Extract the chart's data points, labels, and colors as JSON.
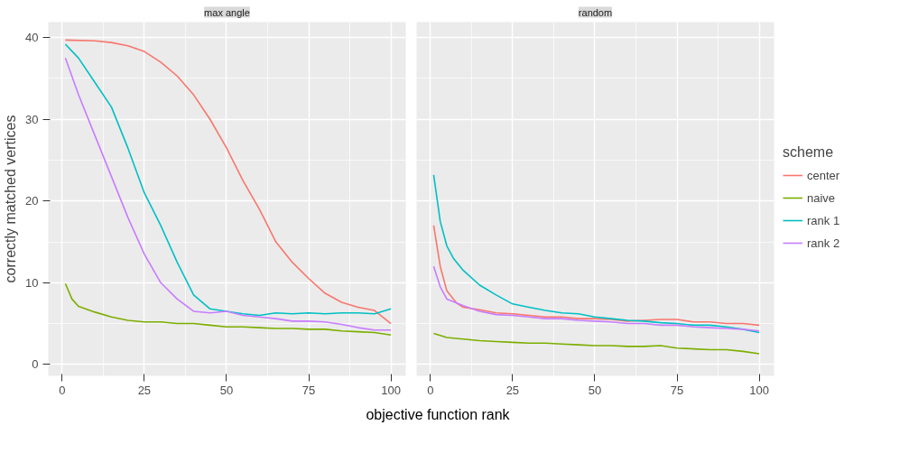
{
  "chart_data": [
    {
      "type": "line",
      "title": "max angle",
      "ylabel": "correctly matched vertices",
      "xlabel": "objective function rank",
      "xlim": [
        -4.2,
        104.5
      ],
      "ylim": [
        -1.4,
        41.9
      ],
      "xticks": [
        0,
        25,
        50,
        75,
        100
      ],
      "yticks": [
        0,
        10,
        20,
        30,
        40
      ],
      "grid": true,
      "series": [
        {
          "color": "#f8766d",
          "x": [
            1,
            10,
            15,
            20,
            25,
            30,
            35,
            40,
            45,
            50,
            55,
            60,
            65,
            70,
            75,
            80,
            85,
            90,
            95,
            100
          ],
          "values": [
            39.7,
            39.6,
            39.4,
            39,
            38.3,
            37,
            35.3,
            33,
            30,
            26.5,
            22.5,
            19,
            15,
            12.5,
            10.5,
            8.7,
            7.6,
            7,
            6.6,
            5
          ]
        },
        {
          "color": "#7cae00",
          "x": [
            1,
            3,
            5,
            10,
            15,
            20,
            25,
            30,
            35,
            40,
            45,
            50,
            55,
            60,
            65,
            70,
            75,
            80,
            85,
            90,
            95,
            100
          ],
          "values": [
            9.9,
            8,
            7.1,
            6.4,
            5.8,
            5.4,
            5.2,
            5.2,
            5,
            5,
            4.8,
            4.6,
            4.6,
            4.5,
            4.4,
            4.4,
            4.3,
            4.3,
            4.1,
            4,
            3.9,
            3.6
          ]
        },
        {
          "color": "#00bfc4",
          "x": [
            1,
            5,
            10,
            15,
            20,
            25,
            30,
            35,
            40,
            45,
            50,
            55,
            60,
            65,
            70,
            75,
            80,
            85,
            90,
            95,
            100
          ],
          "values": [
            39.2,
            37.5,
            34.5,
            31.5,
            26.5,
            21,
            17,
            12.5,
            8.5,
            6.8,
            6.5,
            6.2,
            6,
            6.3,
            6.2,
            6.3,
            6.2,
            6.3,
            6.3,
            6.2,
            6.8
          ]
        },
        {
          "color": "#c77cff",
          "x": [
            1,
            5,
            10,
            15,
            20,
            25,
            30,
            35,
            40,
            45,
            50,
            55,
            60,
            65,
            70,
            75,
            80,
            85,
            90,
            95,
            100
          ],
          "values": [
            37.5,
            33,
            28,
            23,
            18,
            13.5,
            10,
            8,
            6.5,
            6.3,
            6.5,
            6,
            5.8,
            5.6,
            5.3,
            5.3,
            5.2,
            4.9,
            4.5,
            4.2,
            4.2
          ]
        }
      ]
    },
    {
      "type": "line",
      "title": "random",
      "xlim": [
        -4.2,
        104.5
      ],
      "ylim": [
        -1.4,
        41.9
      ],
      "xticks": [
        0,
        25,
        50,
        75,
        100
      ],
      "yticks": [
        0,
        10,
        20,
        30,
        40
      ],
      "tick_labels": "x",
      "grid": true,
      "legend": "right",
      "legend_title": "scheme",
      "series": [
        {
          "name": "center",
          "color": "#f8766d",
          "x": [
            1,
            3,
            5,
            8,
            10,
            15,
            20,
            25,
            30,
            35,
            40,
            45,
            50,
            55,
            60,
            65,
            70,
            75,
            80,
            85,
            90,
            95,
            100
          ],
          "values": [
            17,
            12,
            9,
            7.5,
            7,
            6.7,
            6.3,
            6.2,
            6,
            5.8,
            5.8,
            5.6,
            5.6,
            5.5,
            5.3,
            5.4,
            5.5,
            5.5,
            5.2,
            5.2,
            5,
            5,
            4.8
          ]
        },
        {
          "name": "naive",
          "color": "#7cae00",
          "x": [
            1,
            5,
            10,
            15,
            20,
            25,
            30,
            35,
            40,
            45,
            50,
            55,
            60,
            65,
            70,
            75,
            80,
            85,
            90,
            95,
            100
          ],
          "values": [
            3.8,
            3.3,
            3.1,
            2.9,
            2.8,
            2.7,
            2.6,
            2.6,
            2.5,
            2.4,
            2.3,
            2.3,
            2.2,
            2.2,
            2.3,
            2,
            1.9,
            1.8,
            1.8,
            1.6,
            1.3
          ]
        },
        {
          "name": "rank 1",
          "color": "#00bfc4",
          "x": [
            1,
            3,
            5,
            7,
            10,
            15,
            20,
            25,
            30,
            35,
            40,
            45,
            50,
            55,
            60,
            65,
            70,
            75,
            80,
            85,
            90,
            95,
            100
          ],
          "values": [
            23.2,
            17.5,
            14.5,
            13,
            11.5,
            9.7,
            8.5,
            7.4,
            7,
            6.6,
            6.3,
            6.2,
            5.8,
            5.6,
            5.4,
            5.3,
            5.1,
            5,
            4.8,
            4.8,
            4.6,
            4.3,
            3.9
          ]
        },
        {
          "name": "rank 2",
          "color": "#c77cff",
          "x": [
            1,
            3,
            5,
            10,
            15,
            20,
            25,
            30,
            35,
            40,
            45,
            50,
            55,
            60,
            65,
            70,
            75,
            80,
            85,
            90,
            95,
            100
          ],
          "values": [
            12,
            9.5,
            8,
            7.2,
            6.5,
            6.1,
            6,
            5.8,
            5.6,
            5.6,
            5.4,
            5.3,
            5.2,
            5,
            5,
            4.8,
            4.8,
            4.6,
            4.5,
            4.4,
            4.3,
            4.1
          ]
        }
      ]
    }
  ]
}
